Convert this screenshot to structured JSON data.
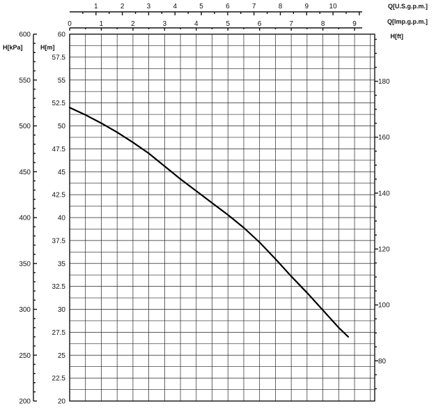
{
  "chart_data": {
    "type": "line",
    "axes": {
      "q_us_gpm": {
        "label": "Q[U.S.g.p.m.]",
        "range": [
          0,
          11.9
        ],
        "ticks": [
          1,
          2,
          3,
          4,
          5,
          6,
          7,
          8,
          9,
          10
        ]
      },
      "q_imp_gpm": {
        "label": "Q[Imp.g.p.m.]",
        "range": [
          0,
          9.9
        ],
        "ticks": [
          0,
          1,
          2,
          3,
          4,
          5,
          6,
          7,
          8,
          9
        ]
      },
      "h_m": {
        "label": "H[m]",
        "range": [
          20,
          60
        ],
        "ticks": [
          "20",
          "22.5",
          "25",
          "27.5",
          "30",
          "32.5",
          "35",
          "37.5",
          "40",
          "42.5",
          "45",
          "47.5",
          "50",
          "52.5",
          "55",
          "57.5",
          "60"
        ]
      },
      "h_kpa": {
        "label": "H[kPa]",
        "range": [
          200,
          600
        ],
        "ticks": [
          200,
          250,
          300,
          350,
          400,
          450,
          500,
          550,
          600
        ]
      },
      "h_ft": {
        "label": "H[ft]",
        "range": [
          65.6,
          196.9
        ],
        "ticks": [
          80,
          100,
          120,
          140,
          160,
          180
        ]
      }
    },
    "grid": true,
    "series": [
      {
        "x_imp_gpm": [
          0,
          0.5,
          1,
          1.5,
          2,
          2.5,
          3,
          3.5,
          4,
          4.5,
          5,
          5.5,
          6,
          6.5,
          7,
          7.5,
          8,
          8.5,
          8.8
        ],
        "h_m": [
          52,
          51.2,
          50.3,
          49.3,
          48.2,
          47,
          45.6,
          44.2,
          42.9,
          41.6,
          40.3,
          38.9,
          37.3,
          35.5,
          33.6,
          31.8,
          29.9,
          28,
          27
        ]
      }
    ]
  }
}
